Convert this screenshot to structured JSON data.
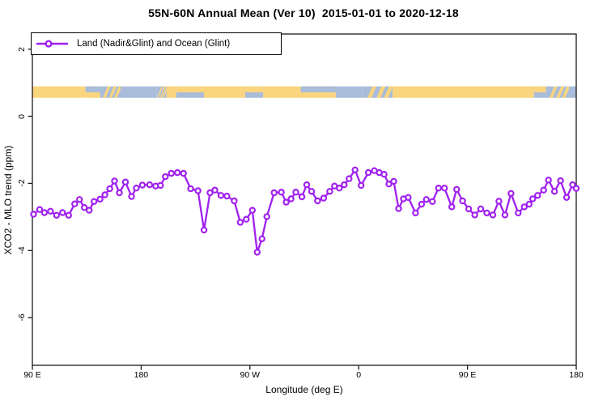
{
  "title": "55N-60N Annual Mean (Ver 10)  2015-01-01 to 2020-12-18",
  "legend": {
    "label": "Land (Nadir&Glint) and Ocean (Glint)"
  },
  "chart_data": {
    "type": "line",
    "title": "55N-60N Annual Mean (Ver 10)  2015-01-01 to 2020-12-18",
    "xlabel": "Longitude (deg E)",
    "ylabel": "XCO2 - MLO trend (ppm)",
    "xlim": [
      90,
      540
    ],
    "ylim": [
      -7.42,
      2.45
    ],
    "grid": false,
    "legend_position": "top-left",
    "line_color": "#A020F0",
    "marker": "open-circle",
    "marker_fill": "#ffffff",
    "frame_color": "#1a1a1a",
    "x_ticks": {
      "values": [
        90,
        180,
        270,
        360,
        450,
        540
      ],
      "labels": [
        "90 E",
        "180",
        "90 W",
        "0",
        "90 E",
        "180"
      ]
    },
    "y_ticks": {
      "values": [
        2,
        0,
        -2,
        -4,
        -6
      ],
      "labels": [
        "2",
        "0",
        "-2",
        "-4",
        "-6"
      ]
    },
    "series": [
      {
        "name": "Land (Nadir&Glint) and Ocean (Glint)",
        "x": [
          91,
          96,
          100,
          105,
          110,
          115,
          120,
          125,
          129,
          133,
          137,
          141,
          146,
          150,
          154,
          158,
          162,
          167,
          172,
          176,
          181,
          187,
          192,
          196,
          200,
          205,
          210,
          215,
          221,
          227,
          232,
          237,
          241,
          246,
          251,
          257,
          262,
          267,
          272,
          276,
          280,
          284,
          290,
          296,
          300,
          304,
          308,
          313,
          317,
          321,
          326,
          331,
          336,
          340,
          344,
          348,
          352,
          357,
          362,
          368,
          373,
          377,
          381,
          385,
          389,
          393,
          397,
          401,
          407,
          412,
          416,
          421,
          426,
          431,
          437,
          441,
          446,
          451,
          456,
          461,
          466,
          471,
          476,
          481,
          486,
          492,
          497,
          501,
          504,
          508,
          513,
          517,
          522,
          527,
          532,
          537,
          540
        ],
        "y": [
          -2.92,
          -2.78,
          -2.87,
          -2.83,
          -2.95,
          -2.87,
          -2.95,
          -2.61,
          -2.48,
          -2.72,
          -2.8,
          -2.54,
          -2.47,
          -2.34,
          -2.16,
          -1.93,
          -2.28,
          -1.96,
          -2.39,
          -2.14,
          -2.05,
          -2.04,
          -2.08,
          -2.06,
          -1.8,
          -1.7,
          -1.68,
          -1.7,
          -2.16,
          -2.22,
          -3.39,
          -2.28,
          -2.2,
          -2.36,
          -2.38,
          -2.52,
          -3.16,
          -3.07,
          -2.8,
          -4.05,
          -3.65,
          -2.99,
          -2.28,
          -2.26,
          -2.56,
          -2.46,
          -2.26,
          -2.4,
          -2.04,
          -2.24,
          -2.52,
          -2.44,
          -2.24,
          -2.08,
          -2.14,
          -2.04,
          -1.86,
          -1.6,
          -2.06,
          -1.68,
          -1.62,
          -1.68,
          -1.73,
          -2.02,
          -1.94,
          -2.75,
          -2.46,
          -2.42,
          -2.88,
          -2.62,
          -2.48,
          -2.54,
          -2.14,
          -2.14,
          -2.7,
          -2.18,
          -2.52,
          -2.76,
          -2.94,
          -2.76,
          -2.88,
          -2.94,
          -2.53,
          -2.94,
          -2.3,
          -2.88,
          -2.7,
          -2.62,
          -2.46,
          -2.36,
          -2.2,
          -1.9,
          -2.24,
          -1.92,
          -2.42,
          -2.04,
          -2.15
        ]
      }
    ],
    "map_strip": {
      "description": "55N-60N latitude land/ocean band",
      "value_range": [
        0.55,
        0.89
      ],
      "land_color": "#FAD57E",
      "ocean_color": "#A9BCD9",
      "segments": [
        [
          90,
          134,
          "land"
        ],
        [
          134,
          146,
          "coast-n"
        ],
        [
          146,
          163,
          "mix"
        ],
        [
          163,
          193,
          "ocean"
        ],
        [
          193,
          201,
          "mix"
        ],
        [
          201,
          209,
          "land"
        ],
        [
          209,
          232,
          "coast-s"
        ],
        [
          232,
          266,
          "land"
        ],
        [
          266,
          281,
          "coast-s"
        ],
        [
          281,
          312,
          "land"
        ],
        [
          312,
          341,
          "coast-n"
        ],
        [
          341,
          363,
          "ocean"
        ],
        [
          363,
          388,
          "mix"
        ],
        [
          388,
          505,
          "land"
        ],
        [
          505,
          515,
          "coast-s"
        ],
        [
          515,
          534,
          "mix"
        ],
        [
          534,
          540,
          "ocean"
        ]
      ]
    }
  }
}
